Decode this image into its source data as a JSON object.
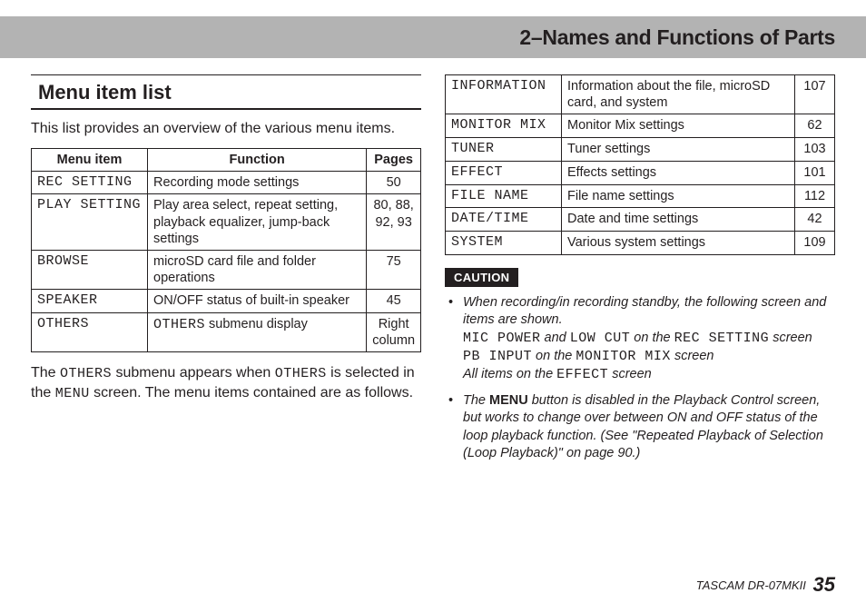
{
  "header": {
    "title": "2–Names and Functions of Parts"
  },
  "section": {
    "title": "Menu item list",
    "intro": "This list provides an overview of the various menu items.",
    "columns": {
      "c1": "Menu item",
      "c2": "Function",
      "c3": "Pages"
    },
    "rows": [
      {
        "item": "REC SETTING",
        "func": "Recording mode settings",
        "pages": "50"
      },
      {
        "item": "PLAY SETTING",
        "func": "Play area select, repeat setting, playback equalizer, jump-back settings",
        "pages": "80, 88, 92, 93"
      },
      {
        "item": "BROWSE",
        "func": "microSD card file and folder operations",
        "pages": "75"
      },
      {
        "item": "SPEAKER",
        "func": "ON/OFF status of built-in speaker",
        "pages": "45"
      },
      {
        "item": "OTHERS",
        "func_pre": "",
        "func_lcd": "OTHERS",
        "func_post": " submenu display",
        "pages": "Right column"
      }
    ],
    "others_note": {
      "p1a": "The ",
      "p1b": "OTHERS",
      "p1c": " submenu appears when ",
      "p1d": "OTHERS",
      "p1e": " is selected in the ",
      "p1f": "MENU",
      "p1g": " screen. The menu items contained are as follows."
    }
  },
  "sub": {
    "rows": [
      {
        "item": "INFORMATION",
        "func": "Information about the file, microSD card, and system",
        "pages": "107"
      },
      {
        "item": "MONITOR MIX",
        "func": "Monitor Mix settings",
        "pages": "62"
      },
      {
        "item": "TUNER",
        "func": "Tuner settings",
        "pages": "103"
      },
      {
        "item": "EFFECT",
        "func": "Effects settings",
        "pages": "101"
      },
      {
        "item": "FILE NAME",
        "func": "File name settings",
        "pages": "112"
      },
      {
        "item": "DATE/TIME",
        "func": "Date and time settings",
        "pages": "42"
      },
      {
        "item": "SYSTEM",
        "func": "Various system settings",
        "pages": "109"
      }
    ]
  },
  "caution": {
    "label": "CAUTION",
    "b1": {
      "l1": "When recording/in recording standby, the following screen and items are shown.",
      "l2a": "MIC POWER",
      "l2b": " and ",
      "l2c": "LOW CUT",
      "l2d": " on the ",
      "l2e": "REC SETTING",
      "l2f": " screen",
      "l3a": "PB INPUT",
      "l3b": " on the ",
      "l3c": "MONITOR MIX",
      "l3d": " screen",
      "l4a": "All items on the ",
      "l4b": "EFFECT",
      "l4c": " screen"
    },
    "b2": {
      "t1": "The ",
      "t2": "MENU",
      "t3": " button is disabled in the Playback Control screen, but works to change over between ON and OFF status of the loop playback function. (See \"Repeated Playback of Selection (Loop Playback)\" on page 90.)"
    }
  },
  "footer": {
    "model": "TASCAM DR-07MKII",
    "page": "35"
  }
}
